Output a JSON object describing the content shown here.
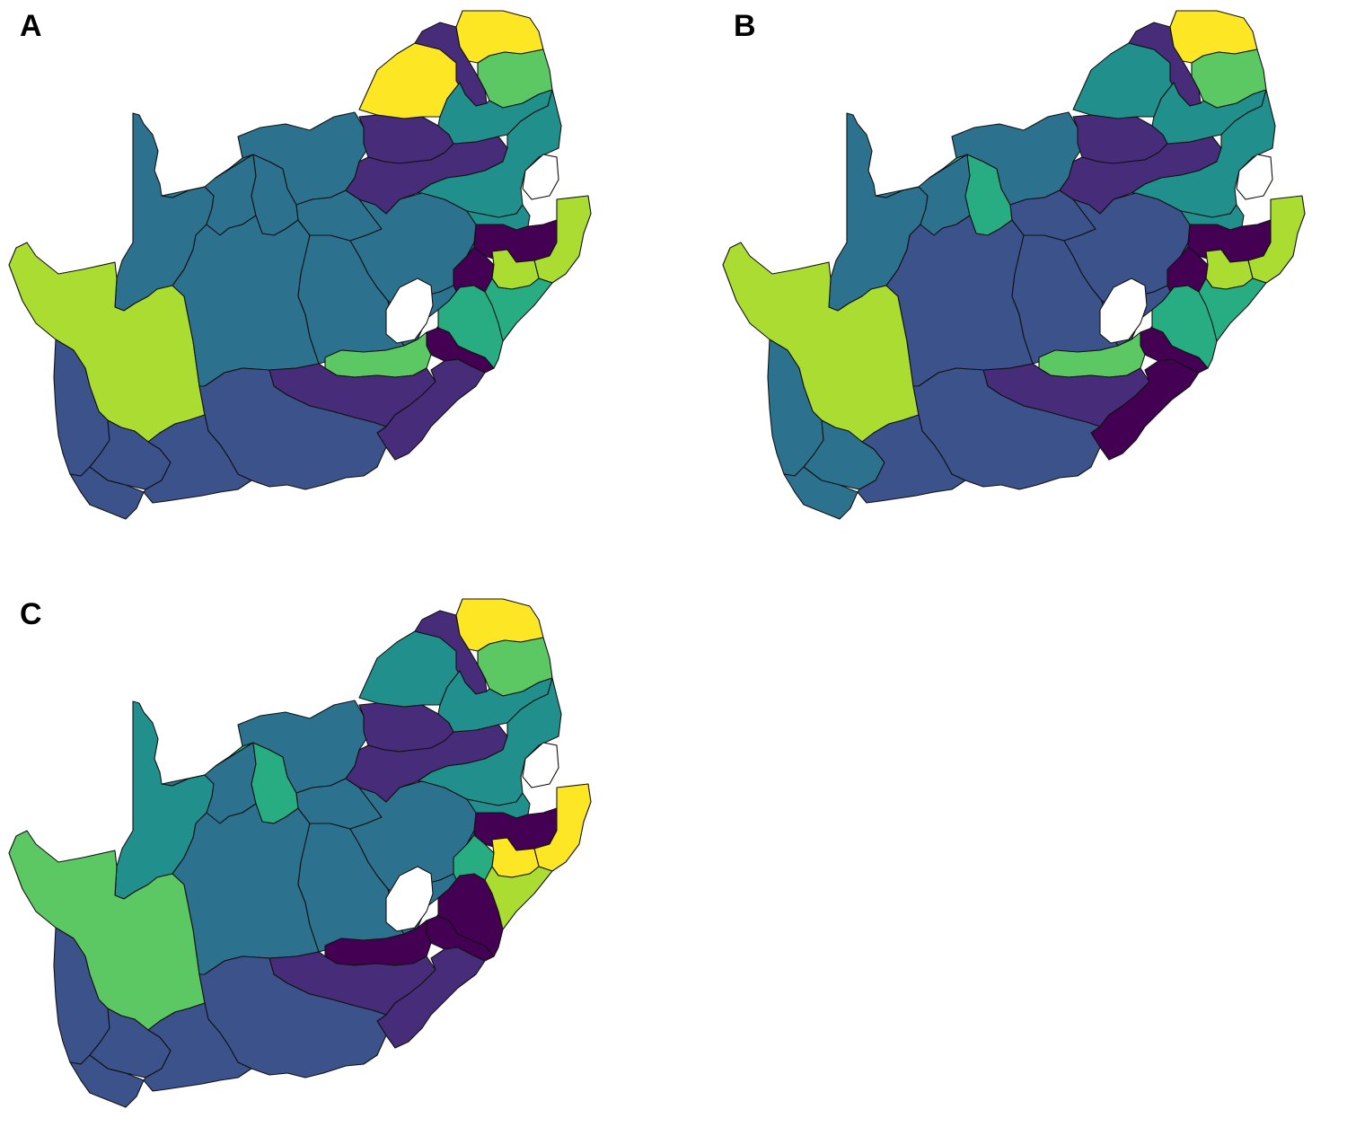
{
  "colors": {
    "v0": "#440154",
    "v1": "#472c7a",
    "v2": "#3b528b",
    "v3": "#2c728e",
    "v4": "#21908d",
    "v5": "#27ad81",
    "v6": "#5cc863",
    "v7": "#aadc32",
    "v8": "#fde725",
    "border": "#111111",
    "background": "#ffffff"
  },
  "panels": [
    {
      "label": "A",
      "fills": {
        "far_north": "v8",
        "vhembe_w": "v1",
        "limpopo_w": "v8",
        "mopani": "v6",
        "sekhukhune": "v4",
        "lowveld": "v4",
        "gauteng": "v1",
        "highveld": "v1",
        "mpumalanga_s": "v4",
        "northwest_w": "v3",
        "northwest_c": "v3",
        "northwest_e": "v3",
        "kalahari": "v3",
        "namakwa_ext": "v7",
        "frances_baard": "v3",
        "fs_north": "v3",
        "fs_east": "v3",
        "kzn_north": "v0",
        "kzn_coast": "v7",
        "kzn_mid": "v0",
        "kzn_mid2": "v7",
        "kzn_central": "v5",
        "kzn_south": "v0",
        "alfred_nzo": "v5",
        "karoo_c": "v3",
        "fs_south": "v3",
        "joe_gqabi": "v6",
        "amathole": "v1",
        "or_tambo": "v1",
        "cacadu": "v2",
        "eden": "v2",
        "cape_winelands": "v2",
        "west_coast": "v2",
        "cape_town": "v2"
      }
    },
    {
      "label": "B",
      "fills": {
        "far_north": "v8",
        "vhembe_w": "v1",
        "limpopo_w": "v4",
        "mopani": "v6",
        "sekhukhune": "v4",
        "lowveld": "v4",
        "gauteng": "v1",
        "highveld": "v1",
        "mpumalanga_s": "v4",
        "northwest_w": "v3",
        "northwest_c": "v5",
        "northwest_e": "v3",
        "kalahari": "v3",
        "namakwa_ext": "v7",
        "frances_baard": "v2",
        "fs_north": "v2",
        "fs_east": "v2",
        "kzn_north": "v0",
        "kzn_coast": "v7",
        "kzn_mid": "v0",
        "kzn_mid2": "v7",
        "kzn_central": "v5",
        "kzn_south": "v0",
        "alfred_nzo": "v5",
        "karoo_c": "v2",
        "fs_south": "v2",
        "joe_gqabi": "v6",
        "amathole": "v1",
        "or_tambo": "v0",
        "cacadu": "v2",
        "eden": "v2",
        "cape_winelands": "v3",
        "west_coast": "v3",
        "cape_town": "v3"
      }
    },
    {
      "label": "C",
      "fills": {
        "far_north": "v8",
        "vhembe_w": "v1",
        "limpopo_w": "v4",
        "mopani": "v6",
        "sekhukhune": "v4",
        "lowveld": "v4",
        "gauteng": "v1",
        "highveld": "v1",
        "mpumalanga_s": "v4",
        "northwest_w": "v3",
        "northwest_c": "v5",
        "northwest_e": "v3",
        "kalahari": "v4",
        "namakwa_ext": "v6",
        "frances_baard": "v3",
        "fs_north": "v3",
        "fs_east": "v3",
        "kzn_north": "v0",
        "kzn_coast": "v8",
        "kzn_mid": "v5",
        "kzn_mid2": "v8",
        "kzn_central": "v7",
        "kzn_south": "v0",
        "alfred_nzo": "v0",
        "karoo_c": "v3",
        "fs_south": "v3",
        "joe_gqabi": "v0",
        "amathole": "v1",
        "or_tambo": "v1",
        "cacadu": "v2",
        "eden": "v2",
        "cape_winelands": "v2",
        "west_coast": "v2",
        "cape_town": "v2"
      }
    }
  ]
}
